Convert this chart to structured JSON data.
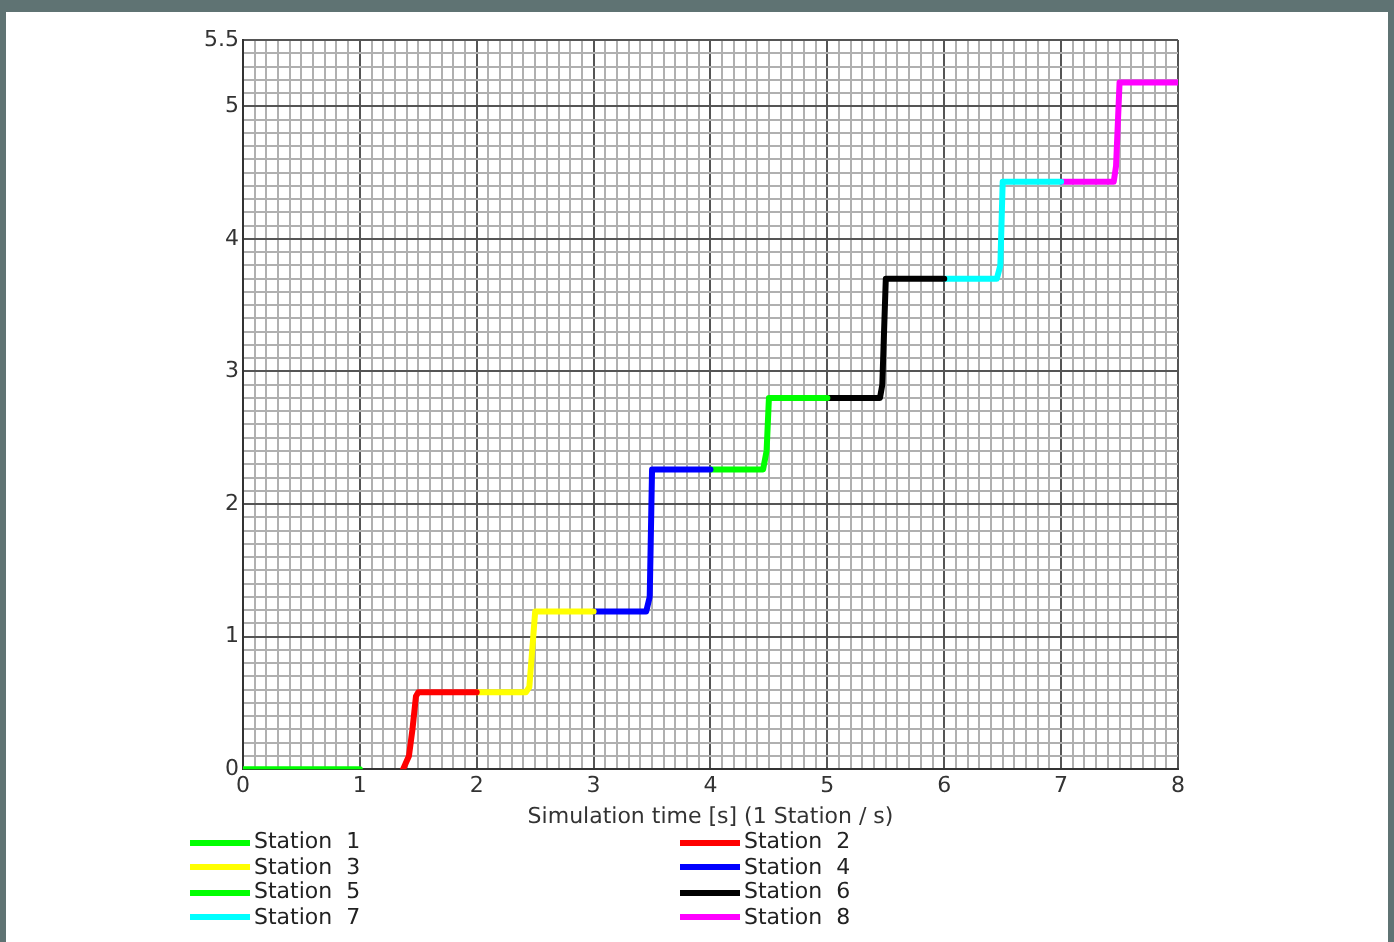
{
  "chart_data": {
    "type": "line",
    "xlabel": "Simulation time [s] (1 Station / s)",
    "xlim": [
      0,
      8
    ],
    "ylim": [
      0,
      5.5
    ],
    "xticks": [
      0,
      {
        "value": 0.1,
        "label": null
      },
      {
        "value": 0.2,
        "label": null
      },
      {
        "value": 0.3,
        "label": null
      },
      {
        "value": 0.4,
        "label": null
      },
      {
        "value": 0.5,
        "label": null
      },
      {
        "value": 0.6,
        "label": null
      },
      {
        "value": 0.7,
        "label": null
      },
      {
        "value": 0.8,
        "label": null
      },
      {
        "value": 0.9,
        "label": null
      },
      1,
      {
        "value": 1.1,
        "label": null
      },
      {
        "value": 1.2,
        "label": null
      },
      {
        "value": 1.3,
        "label": null
      },
      {
        "value": 1.4,
        "label": null
      },
      {
        "value": 1.5,
        "label": null
      },
      {
        "value": 1.6,
        "label": null
      },
      {
        "value": 1.7,
        "label": null
      },
      {
        "value": 1.8,
        "label": null
      },
      {
        "value": 1.9,
        "label": null
      },
      2,
      {
        "value": 2.1,
        "label": null
      },
      {
        "value": 2.2,
        "label": null
      },
      {
        "value": 2.3,
        "label": null
      },
      {
        "value": 2.4,
        "label": null
      },
      {
        "value": 2.5,
        "label": null
      },
      {
        "value": 2.6,
        "label": null
      },
      {
        "value": 2.7,
        "label": null
      },
      {
        "value": 2.8,
        "label": null
      },
      {
        "value": 2.9,
        "label": null
      },
      3,
      {
        "value": 3.1,
        "label": null
      },
      {
        "value": 3.2,
        "label": null
      },
      {
        "value": 3.3,
        "label": null
      },
      {
        "value": 3.4,
        "label": null
      },
      {
        "value": 3.5,
        "label": null
      },
      {
        "value": 3.6,
        "label": null
      },
      {
        "value": 3.7,
        "label": null
      },
      {
        "value": 3.8,
        "label": null
      },
      {
        "value": 3.9,
        "label": null
      },
      4,
      {
        "value": 4.1,
        "label": null
      },
      {
        "value": 4.2,
        "label": null
      },
      {
        "value": 4.3,
        "label": null
      },
      {
        "value": 4.4,
        "label": null
      },
      {
        "value": 4.5,
        "label": null
      },
      {
        "value": 4.6,
        "label": null
      },
      {
        "value": 4.7,
        "label": null
      },
      {
        "value": 4.8,
        "label": null
      },
      {
        "value": 4.9,
        "label": null
      },
      5,
      {
        "value": 5.1,
        "label": null
      },
      {
        "value": 5.2,
        "label": null
      },
      {
        "value": 5.3,
        "label": null
      },
      {
        "value": 5.4,
        "label": null
      },
      {
        "value": 5.5,
        "label": null
      },
      {
        "value": 5.6,
        "label": null
      },
      {
        "value": 5.7,
        "label": null
      },
      {
        "value": 5.8,
        "label": null
      },
      {
        "value": 5.9,
        "label": null
      },
      6,
      {
        "value": 6.1,
        "label": null
      },
      {
        "value": 6.2,
        "label": null
      },
      {
        "value": 6.3,
        "label": null
      },
      {
        "value": 6.4,
        "label": null
      },
      {
        "value": 6.5,
        "label": null
      },
      {
        "value": 6.6,
        "label": null
      },
      {
        "value": 6.7,
        "label": null
      },
      {
        "value": 6.8,
        "label": null
      },
      {
        "value": 6.9,
        "label": null
      },
      7,
      {
        "value": 7.1,
        "label": null
      },
      {
        "value": 7.2,
        "label": null
      },
      {
        "value": 7.3,
        "label": null
      },
      {
        "value": 7.4,
        "label": null
      },
      {
        "value": 7.5,
        "label": null
      },
      {
        "value": 7.6,
        "label": null
      },
      {
        "value": 7.7,
        "label": null
      },
      {
        "value": 7.8,
        "label": null
      },
      {
        "value": 7.9,
        "label": null
      },
      8
    ],
    "yticks": [
      0,
      {
        "value": 0.1,
        "label": null
      },
      {
        "value": 0.2,
        "label": null
      },
      {
        "value": 0.3,
        "label": null
      },
      {
        "value": 0.4,
        "label": null
      },
      {
        "value": 0.5,
        "label": null
      },
      {
        "value": 0.6,
        "label": null
      },
      {
        "value": 0.7,
        "label": null
      },
      {
        "value": 0.8,
        "label": null
      },
      {
        "value": 0.9,
        "label": null
      },
      1,
      {
        "value": 1.1,
        "label": null
      },
      {
        "value": 1.2,
        "label": null
      },
      {
        "value": 1.3,
        "label": null
      },
      {
        "value": 1.4,
        "label": null
      },
      {
        "value": 1.5,
        "label": null
      },
      {
        "value": 1.6,
        "label": null
      },
      {
        "value": 1.7,
        "label": null
      },
      {
        "value": 1.8,
        "label": null
      },
      {
        "value": 1.9,
        "label": null
      },
      2,
      {
        "value": 2.1,
        "label": null
      },
      {
        "value": 2.2,
        "label": null
      },
      {
        "value": 2.3,
        "label": null
      },
      {
        "value": 2.4,
        "label": null
      },
      {
        "value": 2.5,
        "label": null
      },
      {
        "value": 2.6,
        "label": null
      },
      {
        "value": 2.7,
        "label": null
      },
      {
        "value": 2.8,
        "label": null
      },
      {
        "value": 2.9,
        "label": null
      },
      3,
      {
        "value": 3.1,
        "label": null
      },
      {
        "value": 3.2,
        "label": null
      },
      {
        "value": 3.3,
        "label": null
      },
      {
        "value": 3.4,
        "label": null
      },
      {
        "value": 3.5,
        "label": null
      },
      {
        "value": 3.6,
        "label": null
      },
      {
        "value": 3.7,
        "label": null
      },
      {
        "value": 3.8,
        "label": null
      },
      {
        "value": 3.9,
        "label": null
      },
      4,
      {
        "value": 4.1,
        "label": null
      },
      {
        "value": 4.2,
        "label": null
      },
      {
        "value": 4.3,
        "label": null
      },
      {
        "value": 4.4,
        "label": null
      },
      {
        "value": 4.5,
        "label": null
      },
      {
        "value": 4.6,
        "label": null
      },
      {
        "value": 4.7,
        "label": null
      },
      {
        "value": 4.8,
        "label": null
      },
      {
        "value": 4.9,
        "label": null
      },
      5,
      {
        "value": 5.1,
        "label": null
      },
      {
        "value": 5.2,
        "label": null
      },
      {
        "value": 5.3,
        "label": null
      },
      {
        "value": 5.4,
        "label": null
      },
      5.5
    ],
    "grid": true,
    "legend": "bottom",
    "marker": "none",
    "line_style": "solid",
    "series": [
      {
        "name": "Station  1",
        "color": "#00ff00",
        "x": [
          0,
          1
        ],
        "values": [
          0,
          0
        ]
      },
      {
        "name": "Station  2",
        "color": "#ff0000",
        "x": [
          1.37,
          1.42,
          1.45,
          1.48,
          1.5,
          2
        ],
        "values": [
          0,
          0.1,
          0.3,
          0.55,
          0.58,
          0.58
        ]
      },
      {
        "name": "Station  3",
        "color": "#ffff00",
        "x": [
          2,
          2.42,
          2.45,
          2.5,
          3
        ],
        "values": [
          0.58,
          0.58,
          0.62,
          1.19,
          1.19
        ]
      },
      {
        "name": "Station  4",
        "color": "#0000ff",
        "x": [
          3,
          3.45,
          3.48,
          3.5,
          4
        ],
        "values": [
          1.19,
          1.19,
          1.3,
          2.26,
          2.26
        ]
      },
      {
        "name": "Station  5",
        "color": "#00ff00",
        "x": [
          4,
          4.45,
          4.48,
          4.5,
          5
        ],
        "values": [
          2.26,
          2.26,
          2.4,
          2.8,
          2.8
        ]
      },
      {
        "name": "Station  6",
        "color": "#000000",
        "x": [
          5,
          5.45,
          5.47,
          5.5,
          6
        ],
        "values": [
          2.8,
          2.8,
          2.9,
          3.7,
          3.7
        ]
      },
      {
        "name": "Station  7",
        "color": "#00ffff",
        "x": [
          6,
          6.45,
          6.48,
          6.5,
          7
        ],
        "values": [
          3.7,
          3.7,
          3.8,
          4.43,
          4.43
        ]
      },
      {
        "name": "Station  8",
        "color": "#ff00ff",
        "x": [
          7,
          7.45,
          7.47,
          7.5,
          8
        ],
        "values": [
          4.43,
          4.43,
          4.55,
          5.18,
          5.18
        ]
      }
    ]
  }
}
